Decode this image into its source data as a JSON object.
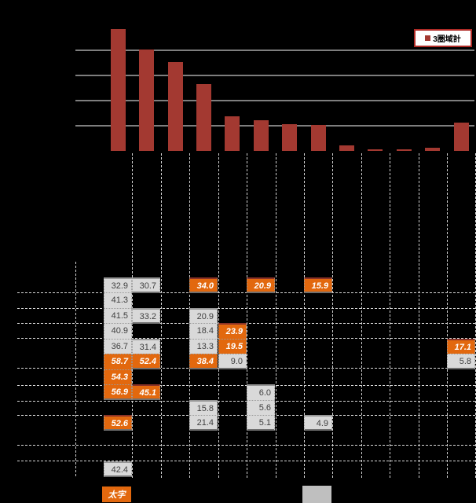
{
  "legend": {
    "label": "3圏域計",
    "marker_color": "#A33931"
  },
  "colors": {
    "bar": "#A33931",
    "legend_border": "#AF2B26",
    "cell_gray": "#D9D9D9",
    "cell_orange": "#E2680E",
    "gridline": "#7E7E7E"
  },
  "chart_data": {
    "type": "bar",
    "title": "",
    "xlabel": "",
    "ylabel": "",
    "series": [
      {
        "name": "3圏域計",
        "values": [
          48.4,
          40.4,
          35.2,
          26.7,
          13.7,
          12.3,
          10.7,
          10.2,
          2.2,
          0.3,
          0.3,
          1.2,
          11.3
        ]
      }
    ],
    "categories": [
      "",
      "",
      "",
      "",
      "",
      "",
      "",
      "",
      "",
      "",
      "",
      "",
      ""
    ],
    "num_categories": 13,
    "ylim": [
      0,
      50
    ],
    "gridline_step": 10,
    "grid": "on",
    "legend_position": "top-right",
    "note": "axis tick labels and category labels are not legible in the image (black text on black background); values estimated from gridlines"
  },
  "table": {
    "cells": [
      {
        "c": 1,
        "r": 1,
        "v": "32.9",
        "s": "g"
      },
      {
        "c": 1,
        "r": 2,
        "v": "41.3",
        "s": "g"
      },
      {
        "c": 1,
        "r": 3,
        "v": "41.5",
        "s": "g"
      },
      {
        "c": 1,
        "r": 4,
        "v": "40.9",
        "s": "g"
      },
      {
        "c": 1,
        "r": 5,
        "v": "36.7",
        "s": "g"
      },
      {
        "c": 1,
        "r": 6,
        "v": "58.7",
        "s": "o"
      },
      {
        "c": 1,
        "r": 7,
        "v": "54.3",
        "s": "o"
      },
      {
        "c": 1,
        "r": 8,
        "v": "56.9",
        "s": "o"
      },
      {
        "c": 1,
        "r": 10,
        "v": "52.6",
        "s": "o"
      },
      {
        "c": 1,
        "r": 13,
        "v": "42.4",
        "s": "g"
      },
      {
        "c": 2,
        "r": 1,
        "v": "30.7",
        "s": "g"
      },
      {
        "c": 2,
        "r": 3,
        "v": "33.2",
        "s": "g"
      },
      {
        "c": 2,
        "r": 5,
        "v": "31.4",
        "s": "g"
      },
      {
        "c": 2,
        "r": 6,
        "v": "52.4",
        "s": "o"
      },
      {
        "c": 2,
        "r": 8,
        "v": "45.1",
        "s": "o"
      },
      {
        "c": 4,
        "r": 1,
        "v": "34.0",
        "s": "o"
      },
      {
        "c": 4,
        "r": 3,
        "v": "20.9",
        "s": "g"
      },
      {
        "c": 4,
        "r": 4,
        "v": "18.4",
        "s": "g"
      },
      {
        "c": 4,
        "r": 5,
        "v": "13.3",
        "s": "g"
      },
      {
        "c": 4,
        "r": 6,
        "v": "38.4",
        "s": "o"
      },
      {
        "c": 4,
        "r": 9,
        "v": "15.8",
        "s": "g"
      },
      {
        "c": 4,
        "r": 10,
        "v": "21.4",
        "s": "g"
      },
      {
        "c": 5,
        "r": 4,
        "v": "23.9",
        "s": "o"
      },
      {
        "c": 5,
        "r": 5,
        "v": "19.5",
        "s": "o"
      },
      {
        "c": 5,
        "r": 6,
        "v": "9.0",
        "s": "g"
      },
      {
        "c": 6,
        "r": 1,
        "v": "20.9",
        "s": "o"
      },
      {
        "c": 6,
        "r": 8,
        "v": "6.0",
        "s": "g"
      },
      {
        "c": 6,
        "r": 9,
        "v": "5.6",
        "s": "g"
      },
      {
        "c": 6,
        "r": 10,
        "v": "5.1",
        "s": "g"
      },
      {
        "c": 8,
        "r": 1,
        "v": "15.9",
        "s": "o"
      },
      {
        "c": 8,
        "r": 10,
        "v": "4.9",
        "s": "g"
      },
      {
        "c": 13,
        "r": 5,
        "v": "17.1",
        "s": "o"
      },
      {
        "c": 13,
        "r": 6,
        "v": "5.8",
        "s": "g"
      }
    ]
  },
  "footer": {
    "bold_label": "太字"
  }
}
